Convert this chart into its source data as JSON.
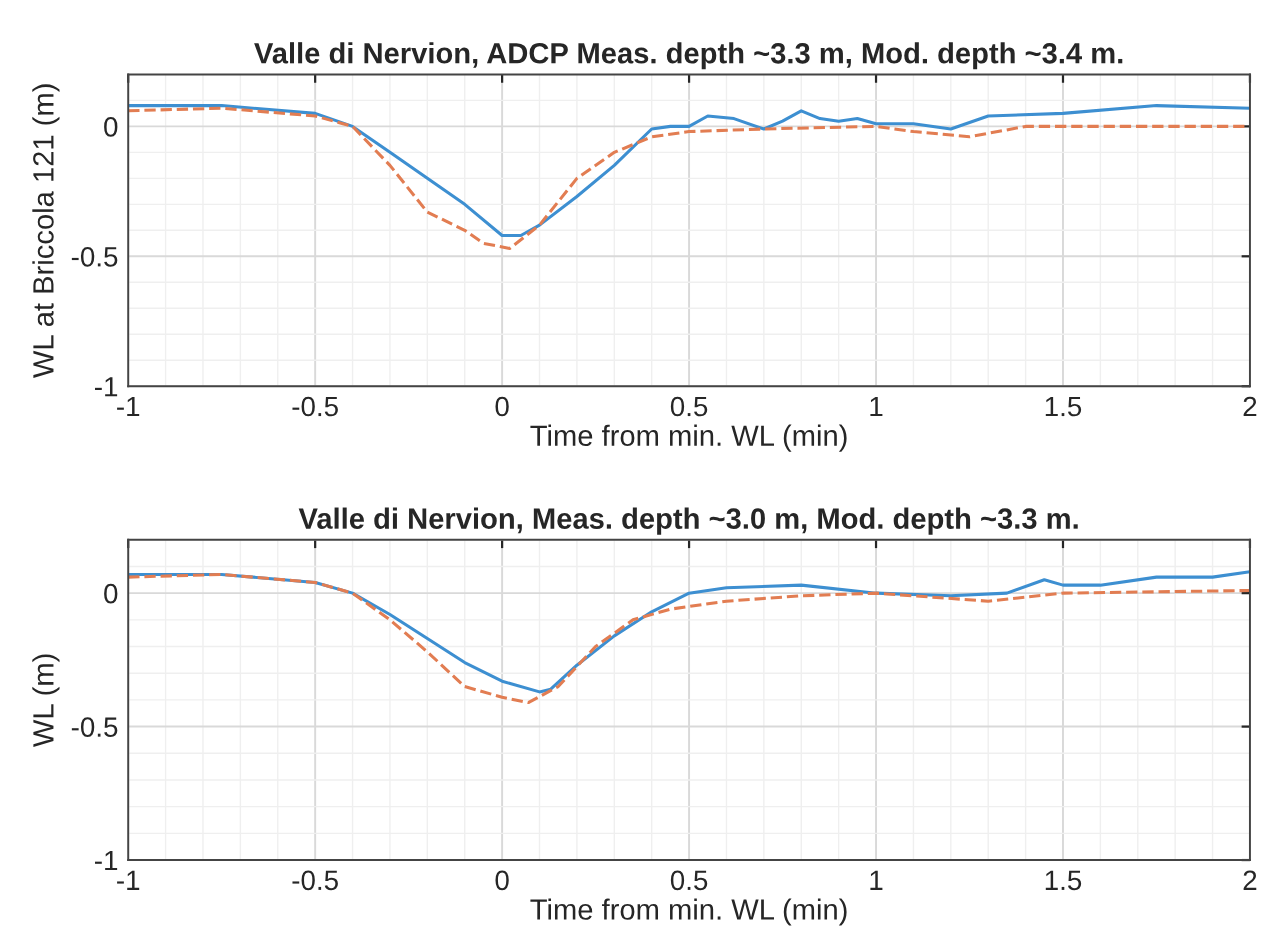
{
  "chart_data": [
    {
      "type": "line",
      "title": "Valle di Nervion, ADCP Meas. depth ~3.3 m, Mod. depth ~3.4 m.",
      "xlabel": "Time from min. WL (min)",
      "ylabel": "WL at Briccola 121 (m)",
      "xlim": [
        -1,
        2
      ],
      "xticks": [
        -1,
        -0.5,
        0,
        0.5,
        1,
        1.5,
        2
      ],
      "ylim": [
        -1,
        0.2
      ],
      "yticks": [
        -1,
        -0.5,
        0
      ],
      "grid": true,
      "series": [
        {
          "color": "#3d8fd1",
          "line_style": "solid",
          "x": [
            -1,
            -0.75,
            -0.5,
            -0.4,
            -0.3,
            -0.2,
            -0.1,
            0,
            0.05,
            0.1,
            0.2,
            0.3,
            0.4,
            0.45,
            0.5,
            0.55,
            0.62,
            0.7,
            0.75,
            0.8,
            0.85,
            0.9,
            0.95,
            1.0,
            1.1,
            1.2,
            1.3,
            1.5,
            1.75,
            2
          ],
          "values": [
            0.08,
            0.08,
            0.05,
            0.0,
            -0.1,
            -0.2,
            -0.3,
            -0.42,
            -0.42,
            -0.38,
            -0.27,
            -0.15,
            -0.01,
            0.0,
            0.0,
            0.04,
            0.03,
            -0.01,
            0.02,
            0.06,
            0.03,
            0.02,
            0.03,
            0.01,
            0.01,
            -0.01,
            0.04,
            0.05,
            0.08,
            0.07
          ]
        },
        {
          "color": "#e27d52",
          "line_style": "dashed",
          "x": [
            -1,
            -0.75,
            -0.5,
            -0.4,
            -0.3,
            -0.2,
            -0.1,
            -0.05,
            0.02,
            0.1,
            0.2,
            0.3,
            0.4,
            0.5,
            0.7,
            1.0,
            1.1,
            1.25,
            1.4,
            1.6,
            2
          ],
          "values": [
            0.06,
            0.07,
            0.04,
            0.0,
            -0.15,
            -0.33,
            -0.4,
            -0.45,
            -0.47,
            -0.38,
            -0.2,
            -0.1,
            -0.04,
            -0.02,
            -0.01,
            0.0,
            -0.02,
            -0.04,
            0.0,
            0.0,
            0.0
          ]
        }
      ]
    },
    {
      "type": "line",
      "title": "Valle di Nervion, Meas. depth ~3.0 m, Mod. depth ~3.3 m.",
      "xlabel": "Time from min. WL (min)",
      "ylabel": "WL (m)",
      "xlim": [
        -1,
        2
      ],
      "xticks": [
        -1,
        -0.5,
        0,
        0.5,
        1,
        1.5,
        2
      ],
      "ylim": [
        -1,
        0.2
      ],
      "yticks": [
        -1,
        -0.5,
        0
      ],
      "grid": true,
      "series": [
        {
          "color": "#3d8fd1",
          "line_style": "solid",
          "x": [
            -1,
            -0.75,
            -0.5,
            -0.4,
            -0.3,
            -0.2,
            -0.1,
            0,
            0.1,
            0.13,
            0.2,
            0.3,
            0.4,
            0.5,
            0.6,
            0.8,
            1.0,
            1.2,
            1.35,
            1.45,
            1.5,
            1.6,
            1.75,
            1.9,
            2
          ],
          "values": [
            0.07,
            0.07,
            0.04,
            0.0,
            -0.08,
            -0.17,
            -0.26,
            -0.33,
            -0.37,
            -0.36,
            -0.27,
            -0.16,
            -0.07,
            0.0,
            0.02,
            0.03,
            0.0,
            -0.01,
            0.0,
            0.05,
            0.03,
            0.03,
            0.06,
            0.06,
            0.08
          ]
        },
        {
          "color": "#e27d52",
          "line_style": "dashed",
          "x": [
            -1,
            -0.75,
            -0.5,
            -0.4,
            -0.3,
            -0.2,
            -0.1,
            0,
            0.07,
            0.15,
            0.25,
            0.35,
            0.45,
            0.6,
            0.8,
            1.0,
            1.3,
            1.5,
            2
          ],
          "values": [
            0.06,
            0.07,
            0.04,
            0.0,
            -0.1,
            -0.22,
            -0.35,
            -0.39,
            -0.41,
            -0.35,
            -0.2,
            -0.1,
            -0.06,
            -0.03,
            -0.01,
            0.0,
            -0.03,
            0.0,
            0.01
          ]
        }
      ]
    }
  ]
}
